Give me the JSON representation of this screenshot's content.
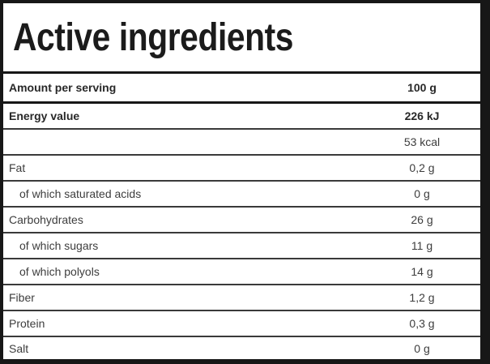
{
  "table": {
    "title": "Active ingredients",
    "rows": [
      {
        "label": "Amount per serving",
        "value": "100 g",
        "bold": true,
        "indent": false,
        "is_header_row": true
      },
      {
        "label": "Energy value",
        "value": "226 kJ",
        "bold": true,
        "indent": false,
        "is_header_row": false
      },
      {
        "label": "",
        "value": "53 kcal",
        "bold": false,
        "indent": false,
        "is_header_row": false
      },
      {
        "label": "Fat",
        "value": "0,2 g",
        "bold": false,
        "indent": false,
        "is_header_row": false
      },
      {
        "label": "of which saturated acids",
        "value": "0 g",
        "bold": false,
        "indent": true,
        "is_header_row": false
      },
      {
        "label": "Carbohydrates",
        "value": "26 g",
        "bold": false,
        "indent": false,
        "is_header_row": false
      },
      {
        "label": "of which sugars",
        "value": "11 g",
        "bold": false,
        "indent": true,
        "is_header_row": false
      },
      {
        "label": "of which polyols",
        "value": "14 g",
        "bold": false,
        "indent": true,
        "is_header_row": false
      },
      {
        "label": "Fiber",
        "value": "1,2 g",
        "bold": false,
        "indent": false,
        "is_header_row": false
      },
      {
        "label": "Protein",
        "value": "0,3 g",
        "bold": false,
        "indent": false,
        "is_header_row": false
      },
      {
        "label": "Salt",
        "value": "0 g",
        "bold": false,
        "indent": false,
        "is_header_row": false
      }
    ],
    "colors": {
      "frame": "#171717",
      "thin_separator": "#3a3a3a",
      "title_text": "#1b1b1b",
      "bold_row_text": "#282828",
      "regular_row_text": "#3d3d3d",
      "background": "#ffffff"
    }
  }
}
